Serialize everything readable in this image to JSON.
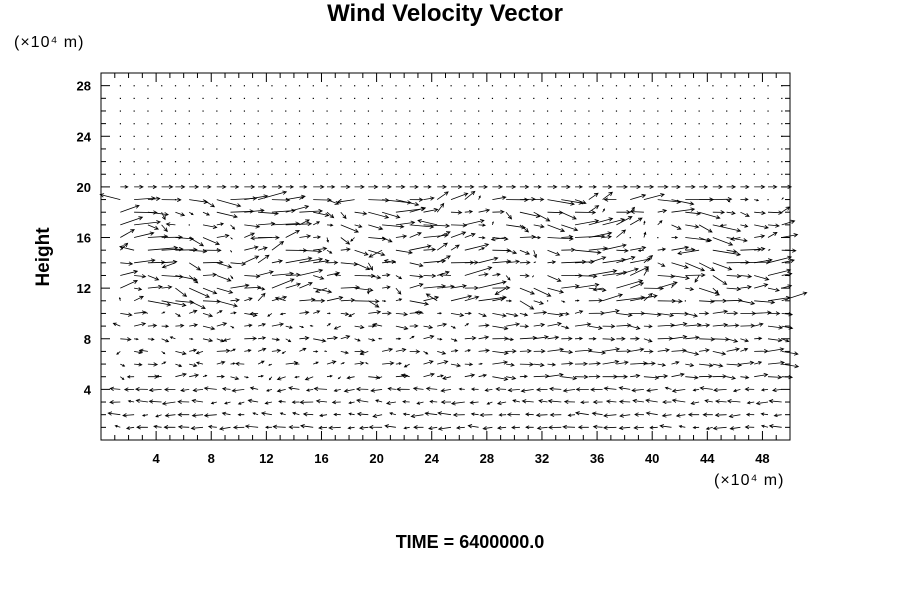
{
  "chart_data": {
    "type": "vector_field",
    "title": "Wind Velocity Vector",
    "ylabel": "Height",
    "x_unit": "(×10⁴ m)",
    "y_unit": "(×10⁴ m)",
    "xlim": [
      0,
      50
    ],
    "ylim": [
      0,
      29
    ],
    "x_ticks": [
      4,
      8,
      12,
      16,
      20,
      24,
      28,
      32,
      36,
      40,
      44,
      48
    ],
    "y_ticks": [
      4,
      8,
      12,
      16,
      20,
      24,
      28
    ],
    "grid_spacing": {
      "x": 2,
      "y": 1
    },
    "footer": "TIME = 6400000.0"
  }
}
